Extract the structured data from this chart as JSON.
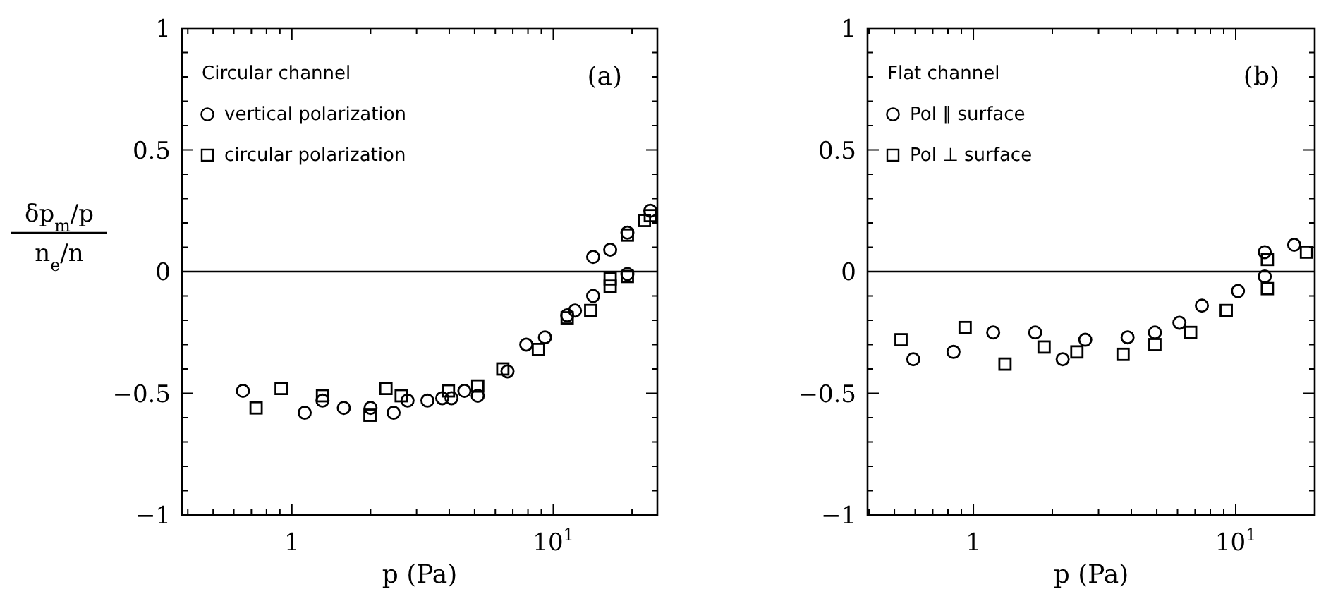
{
  "chart_data": [
    {
      "type": "scatter",
      "xlabel": "p (Pa)",
      "ylabel": "δp$_{m}$/p\nn$_{e}$/n",
      "legend_title": "Circular channel",
      "annotations": [
        "(a)"
      ],
      "log": "x",
      "legend": "top left",
      "grid": false,
      "xlim": [
        0.38,
        25
      ],
      "ylim": [
        -1,
        1
      ],
      "xticks": [
        {
          "value": 0.4,
          "label": null
        },
        {
          "value": 0.5,
          "label": null
        },
        {
          "value": 0.6,
          "label": null
        },
        {
          "value": 0.7,
          "label": null
        },
        {
          "value": 0.8,
          "label": null
        },
        {
          "value": 0.9,
          "label": null
        },
        1,
        {
          "value": 2,
          "label": null
        },
        {
          "value": 3,
          "label": null
        },
        {
          "value": 4,
          "label": null
        },
        {
          "value": 5,
          "label": null
        },
        {
          "value": 6,
          "label": null
        },
        {
          "value": 7,
          "label": null
        },
        {
          "value": 8,
          "label": null
        },
        {
          "value": 9,
          "label": null
        },
        {
          "value": 10,
          "label": "10$^{1}$"
        },
        {
          "value": 20,
          "label": null
        }
      ],
      "yticks": [
        {
          "value": -1,
          "label": "−1"
        },
        {
          "value": -0.9,
          "label": null
        },
        {
          "value": -0.8,
          "label": null
        },
        {
          "value": -0.7,
          "label": null
        },
        {
          "value": -0.6,
          "label": null
        },
        {
          "value": -0.5,
          "label": "−0.5"
        },
        {
          "value": -0.4,
          "label": null
        },
        {
          "value": -0.3,
          "label": null
        },
        {
          "value": -0.2,
          "label": null
        },
        {
          "value": -0.1,
          "label": null
        },
        0,
        {
          "value": 0.1,
          "label": null
        },
        {
          "value": 0.2,
          "label": null
        },
        {
          "value": 0.3,
          "label": null
        },
        {
          "value": 0.4,
          "label": null
        },
        0.5,
        {
          "value": 0.6,
          "label": null
        },
        {
          "value": 0.7,
          "label": null
        },
        {
          "value": 0.8,
          "label": null
        },
        {
          "value": 0.9,
          "label": null
        },
        1
      ],
      "ref_lines": [
        {
          "axis": "y",
          "value": 0,
          "color": "#000000"
        }
      ],
      "series": [
        {
          "name": "vertical polarization",
          "color": "#000000",
          "marker": "circle",
          "x": [
            0.65,
            1.12,
            1.31,
            1.58,
            2.0,
            2.45,
            2.77,
            3.3,
            3.76,
            4.08,
            4.57,
            5.14,
            6.68,
            7.88,
            9.29,
            11.3,
            12.1,
            14.2,
            14.2,
            16.5,
            19.2,
            19.2,
            23.5
          ],
          "values": [
            -0.49,
            -0.58,
            -0.53,
            -0.56,
            -0.56,
            -0.58,
            -0.53,
            -0.53,
            -0.52,
            -0.52,
            -0.49,
            -0.51,
            -0.41,
            -0.3,
            -0.27,
            -0.18,
            -0.16,
            -0.1,
            0.06,
            0.09,
            0.16,
            -0.01,
            0.25
          ]
        },
        {
          "name": "circular polarization",
          "color": "#000000",
          "marker": "square",
          "x": [
            0.73,
            0.91,
            1.31,
            1.99,
            2.29,
            2.62,
            3.97,
            5.14,
            6.41,
            8.77,
            11.3,
            13.9,
            16.5,
            16.5,
            19.2,
            19.2,
            22.3,
            23.5
          ],
          "values": [
            -0.56,
            -0.48,
            -0.51,
            -0.59,
            -0.48,
            -0.51,
            -0.49,
            -0.47,
            -0.4,
            -0.32,
            -0.19,
            -0.16,
            -0.03,
            -0.06,
            0.15,
            -0.02,
            0.21,
            0.23
          ]
        }
      ]
    },
    {
      "type": "scatter",
      "xlabel": "p (Pa)",
      "legend_title": "Flat channel",
      "annotations": [
        "(b)"
      ],
      "log": "x",
      "legend": "top left",
      "grid": false,
      "xlim": [
        0.395,
        20
      ],
      "ylim": [
        -1,
        1
      ],
      "xticks": [
        {
          "value": 0.4,
          "label": null
        },
        {
          "value": 0.5,
          "label": null
        },
        {
          "value": 0.6,
          "label": null
        },
        {
          "value": 0.7,
          "label": null
        },
        {
          "value": 0.8,
          "label": null
        },
        {
          "value": 0.9,
          "label": null
        },
        1,
        {
          "value": 2,
          "label": null
        },
        {
          "value": 3,
          "label": null
        },
        {
          "value": 4,
          "label": null
        },
        {
          "value": 5,
          "label": null
        },
        {
          "value": 6,
          "label": null
        },
        {
          "value": 7,
          "label": null
        },
        {
          "value": 8,
          "label": null
        },
        {
          "value": 9,
          "label": null
        },
        {
          "value": 10,
          "label": "10$^{1}$"
        },
        {
          "value": 20,
          "label": null
        }
      ],
      "yticks": [
        {
          "value": -1,
          "label": "−1"
        },
        {
          "value": -0.9,
          "label": null
        },
        {
          "value": -0.8,
          "label": null
        },
        {
          "value": -0.7,
          "label": null
        },
        {
          "value": -0.6,
          "label": null
        },
        {
          "value": -0.5,
          "label": "−0.5"
        },
        {
          "value": -0.4,
          "label": null
        },
        {
          "value": -0.3,
          "label": null
        },
        {
          "value": -0.2,
          "label": null
        },
        {
          "value": -0.1,
          "label": null
        },
        0,
        {
          "value": 0.1,
          "label": null
        },
        {
          "value": 0.2,
          "label": null
        },
        {
          "value": 0.3,
          "label": null
        },
        {
          "value": 0.4,
          "label": null
        },
        0.5,
        {
          "value": 0.6,
          "label": null
        },
        {
          "value": 0.7,
          "label": null
        },
        {
          "value": 0.8,
          "label": null
        },
        {
          "value": 0.9,
          "label": null
        },
        1
      ],
      "ref_lines": [
        {
          "axis": "y",
          "value": 0,
          "color": "#000000"
        }
      ],
      "series": [
        {
          "name": "Pol ∥ surface",
          "color": "#000000",
          "marker": "circle",
          "x": [
            0.59,
            0.84,
            1.19,
            1.72,
            2.19,
            2.67,
            3.87,
            4.92,
            6.1,
            7.43,
            10.2,
            12.9,
            12.9,
            16.7
          ],
          "values": [
            -0.36,
            -0.33,
            -0.25,
            -0.25,
            -0.36,
            -0.28,
            -0.27,
            -0.25,
            -0.21,
            -0.14,
            -0.08,
            0.08,
            -0.02,
            0.11
          ]
        },
        {
          "name": "Pol ⊥ surface",
          "color": "#000000",
          "marker": "square",
          "x": [
            0.53,
            0.93,
            1.32,
            1.86,
            2.48,
            3.72,
            4.92,
            6.73,
            9.2,
            13.2,
            13.2,
            18.6
          ],
          "values": [
            -0.28,
            -0.23,
            -0.38,
            -0.31,
            -0.33,
            -0.34,
            -0.3,
            -0.25,
            -0.16,
            0.05,
            -0.07,
            0.08
          ]
        }
      ]
    }
  ]
}
